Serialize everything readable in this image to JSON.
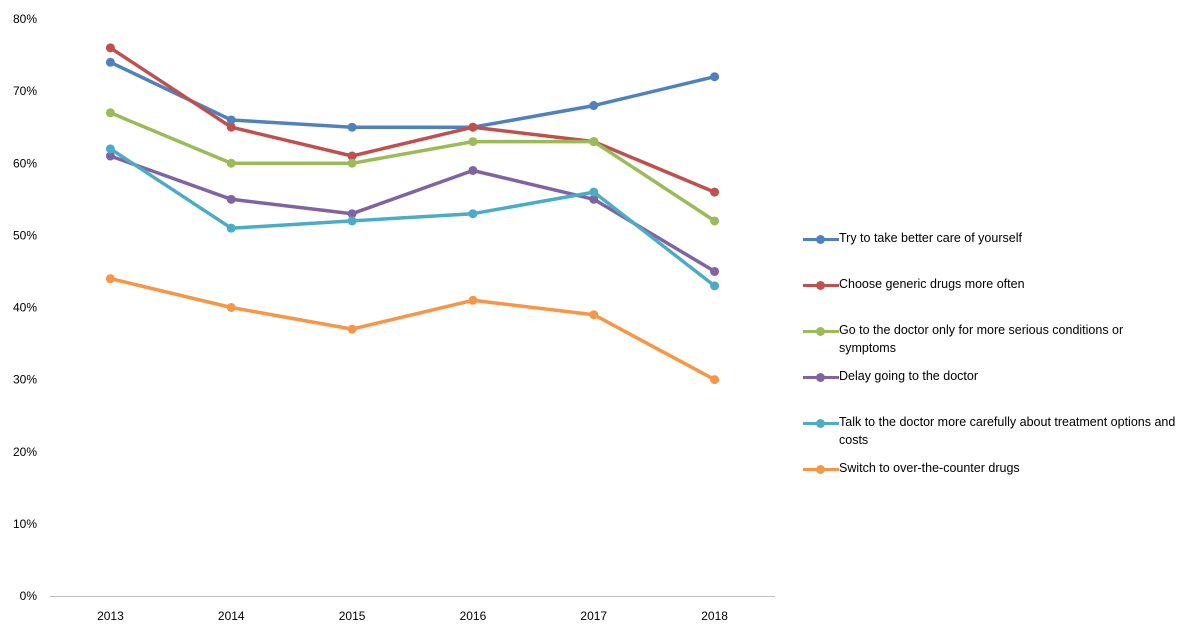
{
  "chart_data": {
    "type": "line",
    "title": "",
    "xlabel": "",
    "ylabel": "",
    "categories": [
      "2013",
      "2014",
      "2015",
      "2016",
      "2017",
      "2018"
    ],
    "ylim": [
      0,
      80
    ],
    "yticks": [
      0,
      10,
      20,
      30,
      40,
      50,
      60,
      70,
      80
    ],
    "ytick_labels": [
      "0%",
      "10%",
      "20%",
      "30%",
      "40%",
      "50%",
      "60%",
      "70%",
      "80%"
    ],
    "grid": false,
    "legend_position": "right",
    "series": [
      {
        "name": "Try to take better care of yourself",
        "color": "#4f81bd",
        "values": [
          74,
          66,
          65,
          65,
          68,
          72
        ]
      },
      {
        "name": "Choose generic drugs more often",
        "color": "#c0504d",
        "values": [
          76,
          65,
          61,
          65,
          63,
          56
        ]
      },
      {
        "name": "Go to the doctor only for more serious conditions or symptoms",
        "color": "#9bbb59",
        "values": [
          67,
          60,
          60,
          63,
          63,
          52
        ]
      },
      {
        "name": "Delay going to the doctor",
        "color": "#8064a2",
        "values": [
          61,
          55,
          53,
          59,
          55,
          45
        ]
      },
      {
        "name": "Talk to the doctor more carefully about treatment options and costs",
        "color": "#4bacc6",
        "values": [
          62,
          51,
          52,
          53,
          56,
          43
        ]
      },
      {
        "name": "Switch to over-the-counter drugs",
        "color": "#f79646",
        "values": [
          44,
          40,
          37,
          41,
          39,
          30
        ]
      }
    ]
  }
}
